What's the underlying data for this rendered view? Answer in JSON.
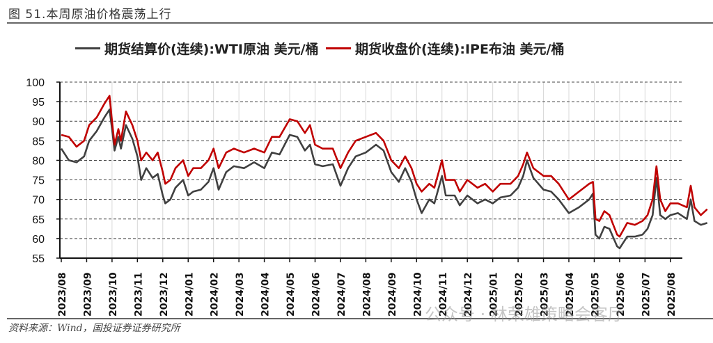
{
  "header": {
    "title": "图 51.本周原油价格震荡上行"
  },
  "footer": {
    "source": "资料来源：Wind，国投证券证券研究所",
    "watermark": "公众号 · 林荣雄策略会客厅"
  },
  "chart_data": {
    "type": "line",
    "title": "图 51.本周原油价格震荡上行",
    "xlabel": "",
    "ylabel": "",
    "ylim": [
      55,
      100
    ],
    "yticks": [
      55,
      60,
      65,
      70,
      75,
      80,
      85,
      90,
      95,
      100
    ],
    "xticks": [
      "2023/08",
      "2023/09",
      "2023/10",
      "2023/11",
      "2023/12",
      "2024/01",
      "2024/02",
      "2024/03",
      "2024/04",
      "2024/05",
      "2024/06",
      "2024/07",
      "2024/08",
      "2024/09",
      "2024/10",
      "2024/11",
      "2024/12",
      "2025/01",
      "2025/02",
      "2025/03",
      "2025/04",
      "2025/05",
      "2025/06",
      "2025/07",
      "2025/08"
    ],
    "x_unit": "months since 2023/08",
    "grid": true,
    "legend_position": "top",
    "series": [
      {
        "name": "期货结算价(连续):WTI原油 美元/桶",
        "color": "#404040",
        "x": [
          0,
          0.3,
          0.6,
          0.9,
          1.1,
          1.4,
          1.7,
          1.9,
          2.0,
          2.1,
          2.25,
          2.35,
          2.55,
          2.8,
          3.0,
          3.15,
          3.35,
          3.6,
          3.8,
          4.0,
          4.1,
          4.3,
          4.5,
          4.8,
          5.0,
          5.2,
          5.5,
          5.8,
          6.0,
          6.2,
          6.5,
          6.8,
          7.2,
          7.6,
          8.0,
          8.3,
          8.6,
          9.0,
          9.3,
          9.6,
          9.8,
          10.0,
          10.3,
          10.7,
          11.0,
          11.3,
          11.6,
          12.0,
          12.4,
          12.7,
          13.0,
          13.3,
          13.55,
          13.8,
          14.0,
          14.2,
          14.5,
          14.7,
          15.0,
          15.15,
          15.5,
          15.7,
          16.0,
          16.4,
          16.7,
          17.0,
          17.3,
          17.7,
          18.0,
          18.2,
          18.35,
          18.6,
          19.0,
          19.3,
          19.6,
          20.0,
          20.4,
          20.8,
          20.95,
          21.05,
          21.2,
          21.4,
          21.6,
          21.9,
          22.0,
          22.3,
          22.6,
          22.9,
          23.1,
          23.3,
          23.45,
          23.6,
          23.8,
          24.0,
          24.3,
          24.65,
          24.8,
          24.95,
          25.2,
          25.45
        ],
        "values": [
          83,
          80,
          79.5,
          81,
          85,
          87.5,
          91,
          93,
          88,
          82.5,
          86,
          83,
          89,
          85.5,
          81,
          75,
          78,
          75.5,
          76.5,
          71,
          69,
          70,
          73,
          75,
          71,
          72,
          72.5,
          74.5,
          78,
          72.5,
          77,
          78.5,
          78,
          79.5,
          78,
          82,
          81.5,
          86.5,
          86,
          82.5,
          84,
          79,
          78.5,
          79,
          73.5,
          78,
          81,
          82,
          84,
          82.5,
          77,
          74.5,
          78,
          74.5,
          70,
          66.5,
          70,
          69,
          76,
          71,
          71,
          68.5,
          71,
          69,
          70,
          69,
          70.5,
          71,
          73,
          76,
          80,
          75.5,
          72.5,
          72,
          70,
          66.5,
          68,
          70,
          71.5,
          61,
          60,
          63,
          62.5,
          58,
          57.5,
          60.5,
          60.5,
          61,
          62.5,
          66,
          75.5,
          66,
          65,
          66,
          66.5,
          65,
          70,
          64.5,
          63.5,
          64
        ]
      },
      {
        "name": "期货收盘价(连续):IPE布油 美元/桶",
        "color": "#c00000",
        "x": [
          0,
          0.3,
          0.6,
          0.9,
          1.1,
          1.4,
          1.7,
          1.9,
          2.0,
          2.1,
          2.25,
          2.35,
          2.55,
          2.8,
          3.0,
          3.15,
          3.35,
          3.6,
          3.8,
          4.0,
          4.1,
          4.3,
          4.5,
          4.8,
          5.0,
          5.2,
          5.5,
          5.8,
          6.0,
          6.2,
          6.5,
          6.8,
          7.2,
          7.6,
          8.0,
          8.3,
          8.6,
          9.0,
          9.3,
          9.6,
          9.8,
          10.0,
          10.3,
          10.7,
          11.0,
          11.3,
          11.6,
          12.0,
          12.4,
          12.7,
          13.0,
          13.3,
          13.55,
          13.8,
          14.0,
          14.2,
          14.5,
          14.7,
          15.0,
          15.15,
          15.5,
          15.7,
          16.0,
          16.4,
          16.7,
          17.0,
          17.3,
          17.7,
          18.0,
          18.2,
          18.35,
          18.6,
          19.0,
          19.3,
          19.6,
          20.0,
          20.4,
          20.8,
          20.95,
          21.05,
          21.2,
          21.4,
          21.6,
          21.9,
          22.0,
          22.3,
          22.6,
          22.9,
          23.1,
          23.3,
          23.45,
          23.6,
          23.8,
          24.0,
          24.3,
          24.65,
          24.8,
          24.95,
          25.2,
          25.45
        ],
        "values": [
          86.5,
          86,
          83.5,
          85,
          89,
          91,
          94.5,
          96.5,
          90,
          84,
          88,
          85,
          92.5,
          89,
          85,
          80,
          82,
          80,
          82,
          77,
          74,
          75,
          78,
          80,
          76,
          78,
          78,
          80,
          83,
          78,
          82,
          83,
          82,
          83,
          82,
          86,
          86,
          90.5,
          90,
          87,
          89,
          84,
          83,
          83,
          78,
          82,
          85,
          86,
          87,
          85,
          80,
          78,
          81,
          78,
          74,
          72,
          74,
          73,
          80,
          75,
          75,
          72,
          75,
          73,
          74,
          72,
          74,
          74,
          76,
          79,
          82,
          78,
          76,
          76,
          74,
          70,
          72,
          74,
          74.5,
          65,
          64.5,
          67,
          66,
          61,
          60.5,
          64,
          63.5,
          64.5,
          66,
          70,
          78.5,
          70,
          67,
          69,
          69,
          68,
          73.5,
          68,
          66,
          67.5
        ]
      }
    ]
  }
}
